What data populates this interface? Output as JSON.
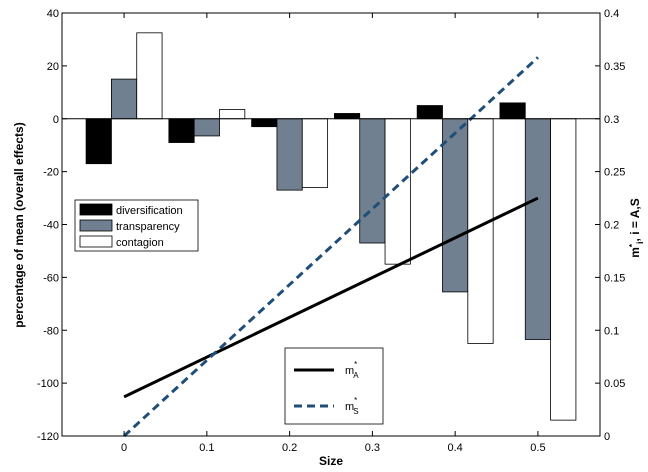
{
  "chart_data": {
    "type": "bar",
    "categories": [
      "0",
      "0.1",
      "0.2",
      "0.3",
      "0.4",
      "0.5"
    ],
    "x_values": [
      0,
      0.1,
      0.2,
      0.3,
      0.4,
      0.5
    ],
    "xlabel": "Size",
    "ylabel_left": "percentage of mean (overall effects)",
    "ylabel_right": "m*_i, i = A,S",
    "ylim_left": [
      -120,
      40
    ],
    "ylim_right": [
      0,
      0.4
    ],
    "xlim": [
      -0.075,
      0.575
    ],
    "x_ticks": [
      "0",
      "0.1",
      "0.2",
      "0.3",
      "0.4",
      "0.5"
    ],
    "y_ticks_left": [
      "40",
      "20",
      "0",
      "-20",
      "-40",
      "-60",
      "-80",
      "-100",
      "-120"
    ],
    "y_ticks_right": [
      "0.4",
      "0.35",
      "0.3",
      "0.25",
      "0.2",
      "0.15",
      "0.1",
      "0.05",
      "0"
    ],
    "bar_series": [
      {
        "name": "diversification",
        "color": "#000000",
        "values": [
          -17,
          -9,
          -3,
          2,
          5,
          6
        ]
      },
      {
        "name": "transparency",
        "color": "#708090",
        "values": [
          15,
          -6.5,
          -27,
          -47,
          -65.5,
          -83.5
        ]
      },
      {
        "name": "contagion",
        "color": "#ffffff",
        "values": [
          32.5,
          3.5,
          -26,
          -55,
          -85,
          -114
        ]
      }
    ],
    "line_series": [
      {
        "name": "m*_A",
        "legend_main": "m",
        "legend_sup": "*",
        "legend_sub": "A",
        "style": "solid",
        "color": "#000000",
        "x": [
          0,
          0.5
        ],
        "y": [
          0.037,
          0.225
        ]
      },
      {
        "name": "m*_S",
        "legend_main": "m",
        "legend_sup": "*",
        "legend_sub": "S",
        "style": "dashed",
        "color": "#1f4e79",
        "x": [
          0,
          0.5
        ],
        "y": [
          0.0,
          0.358
        ]
      }
    ],
    "bar_legend_position": "middle-left",
    "line_legend_position": "bottom-center",
    "grid": false
  }
}
